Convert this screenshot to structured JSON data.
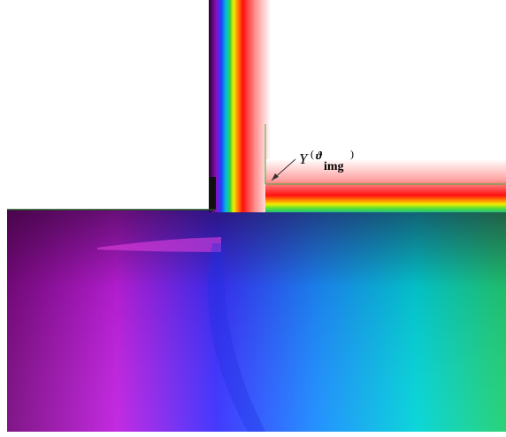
{
  "annotation": {
    "function": "Y",
    "open": "(",
    "variable": "ϑ",
    "subscript": "img",
    "close": ")"
  }
}
